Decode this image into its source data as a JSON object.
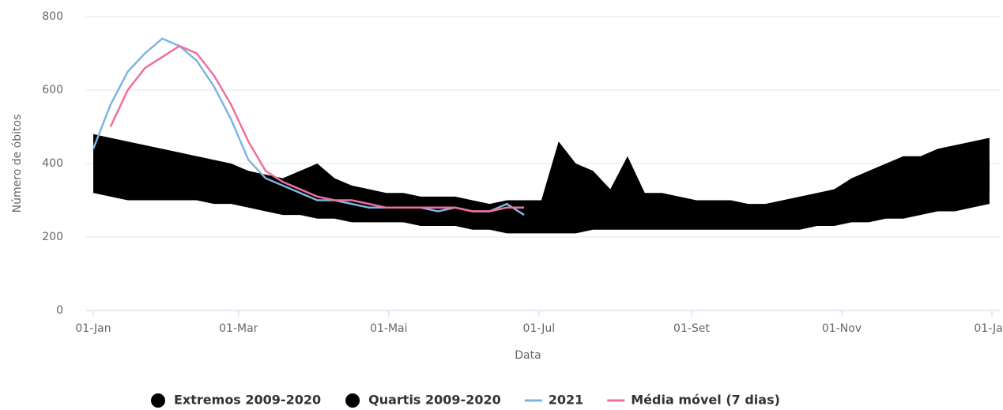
{
  "chart_data": {
    "type": "line",
    "x_label": "Data",
    "y_label": "Número de óbitos",
    "x": [
      0,
      7,
      14,
      21,
      28,
      35,
      42,
      49,
      56,
      63,
      70,
      77,
      84,
      91,
      98,
      105,
      112,
      119,
      126,
      133,
      140,
      147,
      154,
      161,
      168,
      175,
      182,
      189,
      196,
      203,
      210,
      217,
      224,
      231,
      238,
      245,
      252,
      259,
      266,
      273,
      280,
      287,
      294,
      301,
      308,
      315,
      322,
      329,
      336,
      343,
      350,
      357,
      364
    ],
    "xlim": [
      0,
      365
    ],
    "xticks": [
      {
        "value": 0,
        "label": "01-Jan"
      },
      {
        "value": 59,
        "label": "01-Mar"
      },
      {
        "value": 120,
        "label": "01-Mai"
      },
      {
        "value": 181,
        "label": "01-Jul"
      },
      {
        "value": 243,
        "label": "01-Set"
      },
      {
        "value": 304,
        "label": "01-Nov"
      },
      {
        "value": 365,
        "label": "01-Jan"
      }
    ],
    "ylim": [
      0,
      800
    ],
    "yticks": [
      0,
      200,
      400,
      600,
      800
    ],
    "grid": true,
    "series": [
      {
        "name": "Extremos 2009-2020",
        "type": "range",
        "color": "#000000",
        "high": [
          480,
          470,
          460,
          450,
          440,
          430,
          420,
          410,
          400,
          380,
          370,
          360,
          380,
          400,
          360,
          340,
          330,
          320,
          320,
          310,
          310,
          310,
          300,
          290,
          300,
          300,
          300,
          460,
          400,
          380,
          330,
          420,
          320,
          320,
          310,
          300,
          300,
          300,
          290,
          290,
          300,
          310,
          320,
          330,
          360,
          380,
          400,
          420,
          420,
          440,
          450,
          460,
          470
        ],
        "low": [
          320,
          310,
          300,
          300,
          300,
          300,
          300,
          290,
          290,
          280,
          270,
          260,
          260,
          250,
          250,
          240,
          240,
          240,
          240,
          230,
          230,
          230,
          220,
          220,
          210,
          210,
          210,
          210,
          210,
          220,
          220,
          220,
          220,
          220,
          220,
          220,
          220,
          220,
          220,
          220,
          220,
          220,
          230,
          230,
          240,
          240,
          250,
          250,
          260,
          270,
          270,
          280,
          290
        ]
      },
      {
        "name": "Quartis 2009-2020",
        "type": "range",
        "color": "#000000",
        "high": [
          430,
          420,
          410,
          400,
          390,
          380,
          370,
          360,
          350,
          340,
          330,
          320,
          330,
          340,
          320,
          310,
          300,
          290,
          290,
          290,
          280,
          280,
          270,
          270,
          270,
          270,
          280,
          330,
          340,
          320,
          300,
          320,
          290,
          290,
          280,
          280,
          280,
          280,
          270,
          270,
          270,
          280,
          290,
          300,
          310,
          330,
          340,
          360,
          370,
          380,
          390,
          400,
          410
        ],
        "low": [
          350,
          340,
          340,
          330,
          330,
          330,
          330,
          320,
          320,
          310,
          300,
          290,
          290,
          280,
          280,
          270,
          270,
          270,
          260,
          260,
          260,
          260,
          250,
          250,
          250,
          240,
          240,
          240,
          250,
          250,
          250,
          250,
          250,
          250,
          240,
          240,
          240,
          240,
          240,
          240,
          250,
          250,
          250,
          260,
          260,
          270,
          270,
          280,
          290,
          290,
          300,
          310,
          320
        ]
      },
      {
        "name": "2021",
        "type": "line",
        "color": "#7cb5e3",
        "values": [
          440,
          560,
          650,
          700,
          740,
          720,
          680,
          610,
          520,
          410,
          360,
          340,
          320,
          300,
          300,
          290,
          280,
          280,
          280,
          280,
          270,
          280,
          270,
          270,
          290,
          260,
          null,
          null,
          null,
          null,
          null,
          null,
          null,
          null,
          null,
          null,
          null,
          null,
          null,
          null,
          null,
          null,
          null,
          null,
          null,
          null,
          null,
          null,
          null,
          null,
          null,
          null,
          null
        ]
      },
      {
        "name": "Média móvel (7 dias)",
        "type": "line",
        "color": "#f06f9a",
        "values": [
          null,
          500,
          600,
          660,
          690,
          720,
          700,
          640,
          560,
          460,
          380,
          350,
          330,
          310,
          300,
          300,
          290,
          280,
          280,
          280,
          280,
          280,
          270,
          270,
          280,
          280,
          null,
          null,
          null,
          null,
          null,
          null,
          null,
          null,
          null,
          null,
          null,
          null,
          null,
          null,
          null,
          null,
          null,
          null,
          null,
          null,
          null,
          null,
          null,
          null,
          null,
          null,
          null
        ]
      }
    ]
  }
}
